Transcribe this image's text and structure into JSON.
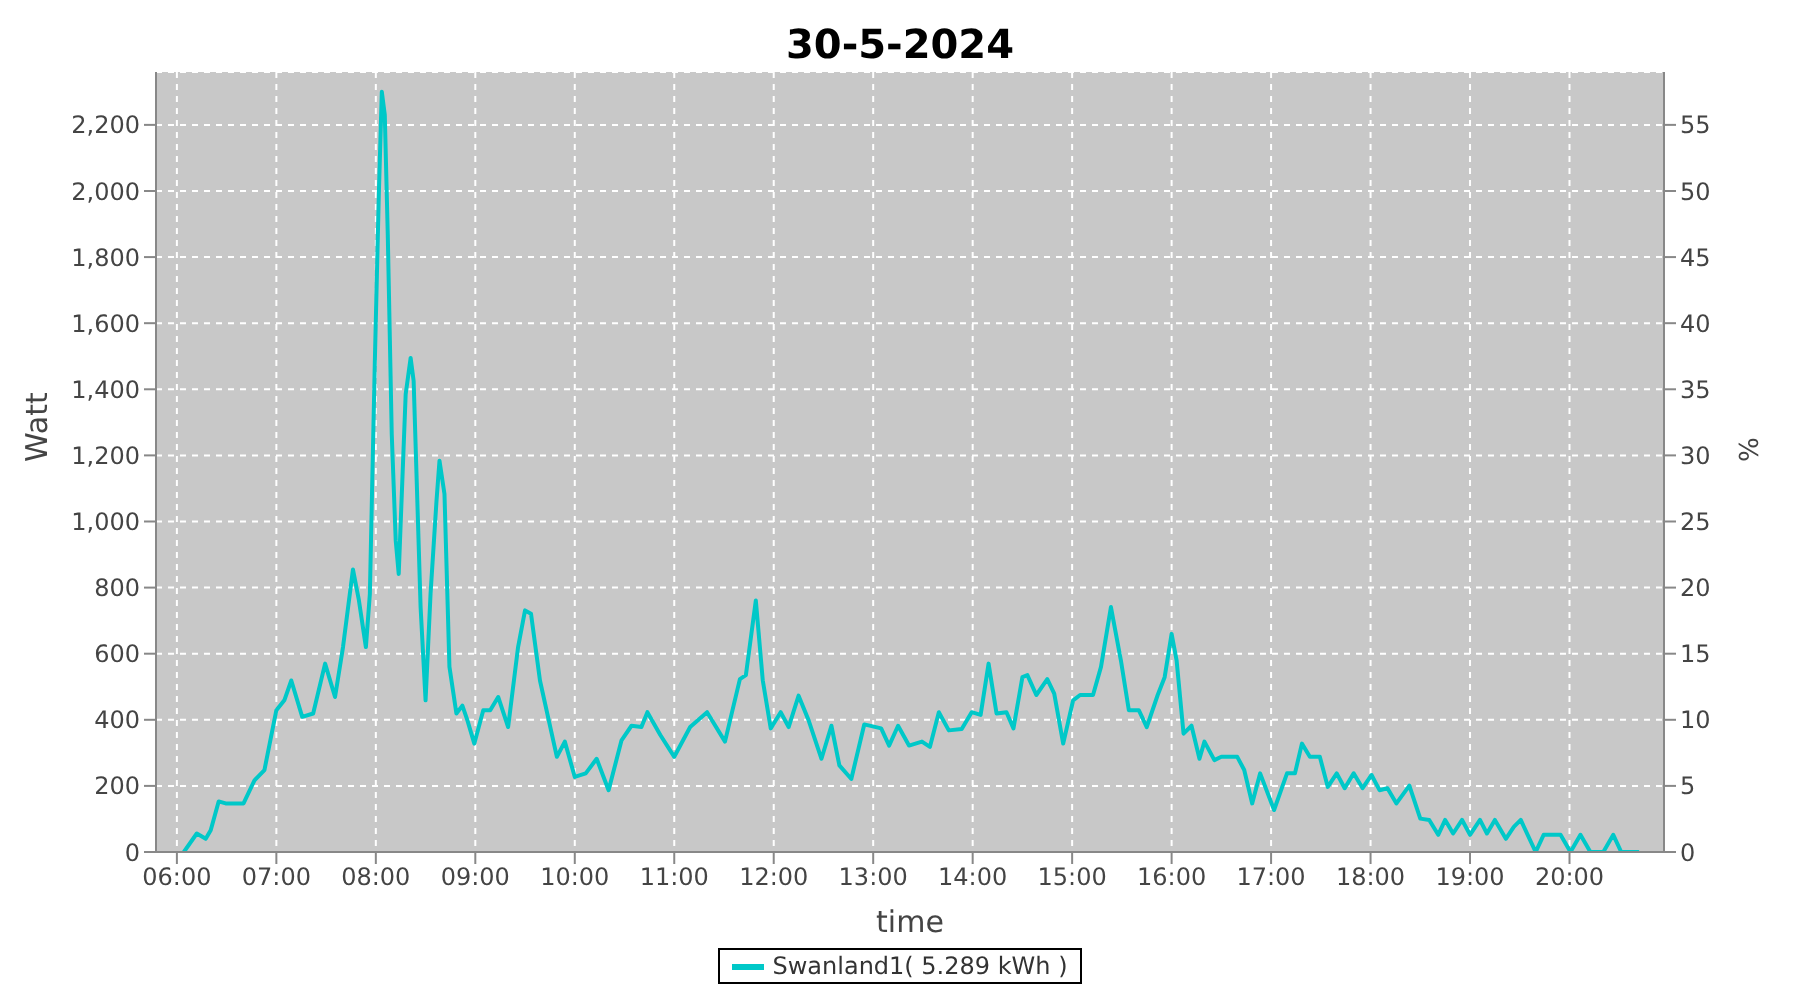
{
  "chart_data": {
    "type": "line",
    "title": "30-5-2024",
    "xlabel": "time",
    "ylabel": "Watt",
    "y2label": "%",
    "x": [
      6.07,
      6.2,
      6.29,
      6.34,
      6.42,
      6.49,
      6.67,
      6.78,
      6.88,
      7.0,
      7.08,
      7.15,
      7.26,
      7.37,
      7.49,
      7.59,
      7.67,
      7.77,
      7.83,
      7.9,
      7.94,
      7.99,
      8.03,
      8.06,
      8.09,
      8.12,
      8.16,
      8.2,
      8.23,
      8.3,
      8.35,
      8.38,
      8.45,
      8.5,
      8.55,
      8.61,
      8.64,
      8.69,
      8.74,
      8.81,
      8.87,
      8.92,
      8.99,
      9.08,
      9.15,
      9.23,
      9.33,
      9.43,
      9.5,
      9.56,
      9.65,
      9.82,
      9.9,
      10.0,
      10.11,
      10.22,
      10.34,
      10.47,
      10.57,
      10.67,
      10.73,
      10.86,
      11.0,
      11.16,
      11.33,
      11.51,
      11.66,
      11.72,
      11.82,
      11.89,
      11.97,
      12.07,
      12.15,
      12.25,
      12.35,
      12.48,
      12.58,
      12.66,
      12.78,
      12.91,
      13.08,
      13.16,
      13.25,
      13.36,
      13.49,
      13.57,
      13.66,
      13.76,
      13.89,
      13.99,
      14.08,
      14.16,
      14.24,
      14.34,
      14.41,
      14.5,
      14.55,
      14.64,
      14.75,
      14.82,
      14.91,
      15.01,
      15.08,
      15.21,
      15.29,
      15.39,
      15.49,
      15.57,
      15.67,
      15.75,
      15.86,
      15.93,
      16.0,
      16.05,
      16.12,
      16.2,
      16.28,
      16.33,
      16.43,
      16.5,
      16.66,
      16.73,
      16.81,
      16.89,
      17.03,
      17.16,
      17.24,
      17.31,
      17.39,
      17.49,
      17.57,
      17.66,
      17.74,
      17.83,
      17.92,
      18.01,
      18.09,
      18.17,
      18.26,
      18.39,
      18.5,
      18.59,
      18.68,
      18.75,
      18.83,
      18.92,
      19.0,
      19.1,
      19.17,
      19.25,
      19.36,
      19.44,
      19.51,
      19.66,
      19.74,
      19.91,
      20.01,
      20.11,
      20.21,
      20.34,
      20.44,
      20.52,
      20.7
    ],
    "series": [
      {
        "name": "Swanland1( 5.289 kWh )",
        "color": "#00c8c8",
        "values": [
          0,
          56,
          40,
          66,
          153,
          147,
          147,
          217,
          248,
          429,
          459,
          519,
          409,
          419,
          570,
          469,
          620,
          855,
          761,
          620,
          781,
          1485,
          1989,
          2300,
          2230,
          1868,
          1264,
          942,
          841,
          1385,
          1495,
          1425,
          741,
          459,
          781,
          1063,
          1184,
          1083,
          560,
          419,
          443,
          399,
          328,
          429,
          429,
          469,
          378,
          620,
          731,
          721,
          519,
          288,
          334,
          227,
          238,
          282,
          187,
          338,
          382,
          378,
          423,
          354,
          288,
          378,
          423,
          334,
          523,
          535,
          761,
          519,
          374,
          423,
          378,
          473,
          399,
          282,
          382,
          262,
          221,
          386,
          374,
          322,
          382,
          322,
          334,
          318,
          423,
          368,
          372,
          423,
          415,
          570,
          419,
          423,
          374,
          529,
          535,
          475,
          523,
          479,
          328,
          459,
          475,
          475,
          560,
          741,
          580,
          429,
          429,
          378,
          475,
          529,
          660,
          580,
          358,
          382,
          282,
          334,
          278,
          288,
          288,
          248,
          147,
          238,
          127,
          238,
          238,
          328,
          288,
          288,
          197,
          238,
          193,
          238,
          193,
          233,
          187,
          193,
          147,
          201,
          101,
          97,
          52,
          97,
          56,
          97,
          52,
          97,
          56,
          97,
          40,
          76,
          97,
          0,
          52,
          52,
          0,
          52,
          0,
          0,
          52,
          0,
          0
        ]
      }
    ],
    "xlim": [
      5.79,
      20.95
    ],
    "xticks": [
      {
        "value": 6,
        "label": "06:00"
      },
      {
        "value": 7,
        "label": "07:00"
      },
      {
        "value": 8,
        "label": "08:00"
      },
      {
        "value": 9,
        "label": "09:00"
      },
      {
        "value": 10,
        "label": "10:00"
      },
      {
        "value": 11,
        "label": "11:00"
      },
      {
        "value": 12,
        "label": "12:00"
      },
      {
        "value": 13,
        "label": "13:00"
      },
      {
        "value": 14,
        "label": "14:00"
      },
      {
        "value": 15,
        "label": "15:00"
      },
      {
        "value": 16,
        "label": "16:00"
      },
      {
        "value": 17,
        "label": "17:00"
      },
      {
        "value": 18,
        "label": "18:00"
      },
      {
        "value": 19,
        "label": "19:00"
      },
      {
        "value": 20,
        "label": "20:00"
      }
    ],
    "ylim": [
      0,
      2360
    ],
    "yticks": [
      0,
      200,
      400,
      600,
      800,
      {
        "value": 1000,
        "label": "1,000"
      },
      {
        "value": 1200,
        "label": "1,200"
      },
      {
        "value": 1400,
        "label": "1,400"
      },
      {
        "value": 1600,
        "label": "1,600"
      },
      {
        "value": 1800,
        "label": "1,800"
      },
      {
        "value": 2000,
        "label": "2,000"
      },
      {
        "value": 2200,
        "label": "2,200"
      }
    ],
    "y2lim": [
      0,
      59
    ],
    "y2ticks": [
      0,
      5,
      10,
      15,
      20,
      25,
      30,
      35,
      40,
      45,
      50,
      55
    ],
    "grid": true,
    "legend": "bottom",
    "marker": "none",
    "line_style": "solid"
  }
}
